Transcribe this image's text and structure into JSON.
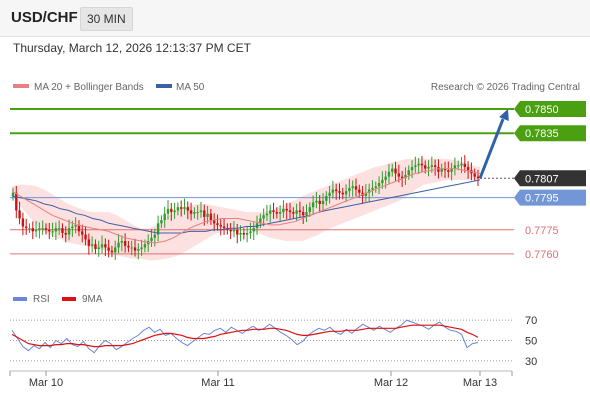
{
  "header": {
    "pair": "USD/CHF",
    "timeframe": "30 MIN",
    "timestamp": "Thursday, March 12, 2026 12:13:37 PM CET"
  },
  "legend": {
    "ma20": "MA 20 + Bollinger Bands",
    "ma50": "MA 50",
    "copyright": "Research © 2026 Trading Central",
    "rsi": "RSI",
    "ma9": "9MA"
  },
  "colors": {
    "up_candle": "#2e9e2e",
    "down_candle": "#cc1111",
    "ma20": "#e88080",
    "ma50": "#3d5fa5",
    "bollinger_fill": "#fde0e0",
    "resistance": "#4aa010",
    "support_blue": "#7296d6",
    "support_red": "#e07070",
    "current_price": "#333333",
    "arrow": "#3062a8",
    "rsi": "#6a86d8",
    "ma9": "#dd1111"
  },
  "price_levels": [
    {
      "value": "0.7850",
      "kind": "resistance"
    },
    {
      "value": "0.7835",
      "kind": "resistance"
    },
    {
      "value": "0.7807",
      "kind": "current"
    },
    {
      "value": "0.7795",
      "kind": "pivot"
    },
    {
      "value": "0.7775",
      "kind": "support"
    },
    {
      "value": "0.7760",
      "kind": "support"
    }
  ],
  "chart_data": [
    {
      "type": "candlestick",
      "title": "USD/CHF",
      "x_ticks": [
        "Mar 10",
        "Mar 11",
        "Mar 12",
        "Mar 13"
      ],
      "ylim": [
        0.775,
        0.7855
      ],
      "forecast_arrow": {
        "from": 0.7807,
        "to": 0.785
      },
      "series": [
        {
          "name": "MA 20 + Bollinger Bands",
          "values": [
            0.7799,
            0.7796,
            0.7793,
            0.779,
            0.7787,
            0.7784,
            0.7782,
            0.778,
            0.7778,
            0.7777,
            0.7776,
            0.7775,
            0.7774,
            0.7772,
            0.777,
            0.7769,
            0.7768,
            0.7767,
            0.7767,
            0.7768,
            0.777,
            0.7773,
            0.7776,
            0.7778,
            0.778,
            0.7781,
            0.7782,
            0.7782,
            0.7782,
            0.7781,
            0.778,
            0.7779,
            0.7778,
            0.7778,
            0.7779,
            0.778,
            0.7782,
            0.7784,
            0.7786,
            0.7788,
            0.779,
            0.7792,
            0.7794,
            0.7796,
            0.7798,
            0.78,
            0.7802,
            0.7804,
            0.7806,
            0.7808,
            0.781,
            0.7811,
            0.7812,
            0.7813,
            0.7813,
            0.7813,
            0.7812,
            0.7811,
            0.781
          ]
        },
        {
          "name": "MA 50",
          "values": [
            0.7796,
            0.7795,
            0.7794,
            0.7793,
            0.7791,
            0.779,
            0.7788,
            0.7787,
            0.7785,
            0.7784,
            0.7782,
            0.7781,
            0.7779,
            0.7778,
            0.7777,
            0.7776,
            0.7775,
            0.7774,
            0.7773,
            0.7773,
            0.7773,
            0.7773,
            0.7774,
            0.7774,
            0.7774,
            0.7775,
            0.7775,
            0.7776,
            0.7776,
            0.7777,
            0.7777,
            0.7778,
            0.7779,
            0.778,
            0.7781,
            0.7782,
            0.7783,
            0.7784,
            0.7786,
            0.7787,
            0.7788,
            0.7789,
            0.779,
            0.7791,
            0.7792,
            0.7793,
            0.7794,
            0.7795,
            0.7796,
            0.7797,
            0.7798,
            0.7799,
            0.78,
            0.7801,
            0.7802,
            0.7803,
            0.7804,
            0.7805,
            0.7806
          ]
        }
      ],
      "bollinger_upper": [
        0.7802,
        0.7803,
        0.7803,
        0.7802,
        0.78,
        0.7797,
        0.7794,
        0.7791,
        0.7789,
        0.7787,
        0.7786,
        0.7786,
        0.7786,
        0.7784,
        0.7781,
        0.7778,
        0.7776,
        0.7776,
        0.7778,
        0.7782,
        0.7786,
        0.7789,
        0.779,
        0.7791,
        0.7791,
        0.779,
        0.7789,
        0.7788,
        0.7787,
        0.7786,
        0.7786,
        0.7786,
        0.7787,
        0.7789,
        0.7791,
        0.7793,
        0.7796,
        0.7798,
        0.78,
        0.7802,
        0.7804,
        0.7806,
        0.7808,
        0.781,
        0.7812,
        0.7814,
        0.7815,
        0.7817,
        0.7818,
        0.7819,
        0.7819,
        0.7819,
        0.7819,
        0.7819,
        0.7819,
        0.7818,
        0.7817,
        0.7815,
        0.7814
      ],
      "bollinger_lower": [
        0.7796,
        0.779,
        0.7784,
        0.7778,
        0.7774,
        0.7771,
        0.7769,
        0.7767,
        0.7766,
        0.7765,
        0.7764,
        0.7763,
        0.7761,
        0.7759,
        0.7758,
        0.7757,
        0.7757,
        0.7756,
        0.7756,
        0.7757,
        0.7758,
        0.776,
        0.7763,
        0.7766,
        0.7769,
        0.7772,
        0.7774,
        0.7775,
        0.7776,
        0.7776,
        0.7774,
        0.7772,
        0.777,
        0.7769,
        0.7768,
        0.7768,
        0.7768,
        0.777,
        0.7772,
        0.7775,
        0.7777,
        0.7779,
        0.7781,
        0.7783,
        0.7785,
        0.7787,
        0.7789,
        0.7791,
        0.7793,
        0.7796,
        0.78,
        0.7803,
        0.7804,
        0.7805,
        0.7806,
        0.7806,
        0.7806,
        0.7806,
        0.7806
      ],
      "candles_close": [
        0.7798,
        0.7787,
        0.7782,
        0.7777,
        0.7776,
        0.7776,
        0.7774,
        0.7775,
        0.7776,
        0.7776,
        0.7775,
        0.7774,
        0.7774,
        0.7776,
        0.7776,
        0.7773,
        0.7772,
        0.7776,
        0.7777,
        0.7778,
        0.7774,
        0.7772,
        0.7769,
        0.7765,
        0.7766,
        0.7763,
        0.7764,
        0.7766,
        0.7764,
        0.7762,
        0.7761,
        0.7764,
        0.7767,
        0.7768,
        0.7765,
        0.7764,
        0.7764,
        0.7762,
        0.7763,
        0.7764,
        0.7766,
        0.7768,
        0.777,
        0.7772,
        0.7779,
        0.7781,
        0.7785,
        0.7788,
        0.7786,
        0.7787,
        0.7789,
        0.7788,
        0.7789,
        0.7787,
        0.7785,
        0.7786,
        0.7786,
        0.7787,
        0.7783,
        0.7785,
        0.7781,
        0.7779,
        0.7778,
        0.7777,
        0.7776,
        0.7775,
        0.7774,
        0.7775,
        0.7772,
        0.7773,
        0.7772,
        0.7773,
        0.7774,
        0.7776,
        0.7779,
        0.7782,
        0.7784,
        0.7785,
        0.7787,
        0.7786,
        0.7785,
        0.7786,
        0.7788,
        0.7787,
        0.7786,
        0.7785,
        0.7787,
        0.7786,
        0.7784,
        0.7786,
        0.7789,
        0.7792,
        0.7793,
        0.7791,
        0.7793,
        0.7796,
        0.7798,
        0.78,
        0.7799,
        0.7798,
        0.7797,
        0.7799,
        0.7801,
        0.7802,
        0.78,
        0.7798,
        0.7796,
        0.7798,
        0.78,
        0.7801,
        0.7802,
        0.7804,
        0.7806,
        0.7808,
        0.7811,
        0.7813,
        0.781,
        0.7808,
        0.7807,
        0.7809,
        0.7812,
        0.7814,
        0.7815,
        0.7816,
        0.7815,
        0.7813,
        0.7814,
        0.7815,
        0.7814,
        0.7811,
        0.7813,
        0.7812,
        0.7811,
        0.7813,
        0.7815,
        0.7815,
        0.7816,
        0.7814,
        0.7812,
        0.781,
        0.7808,
        0.7807
      ]
    },
    {
      "type": "line",
      "title": "RSI",
      "y_ticks": [
        70,
        50,
        30
      ],
      "ylim": [
        25,
        75
      ],
      "series": [
        {
          "name": "RSI",
          "values": [
            60,
            52,
            44,
            40,
            45,
            42,
            48,
            43,
            50,
            47,
            52,
            46,
            44,
            49,
            42,
            38,
            45,
            50,
            47,
            41,
            44,
            48,
            52,
            55,
            60,
            63,
            58,
            61,
            55,
            57,
            52,
            48,
            45,
            49,
            53,
            57,
            56,
            60,
            62,
            58,
            63,
            60,
            57,
            61,
            64,
            60,
            62,
            66,
            62,
            58,
            55,
            51,
            46,
            49,
            55,
            59,
            62,
            60,
            63,
            58,
            56,
            61,
            57,
            62,
            66,
            63,
            60,
            64,
            61,
            58,
            62,
            65,
            70,
            68,
            66,
            64,
            61,
            65,
            68,
            63,
            60,
            59,
            56,
            43,
            47,
            48
          ]
        },
        {
          "name": "9MA",
          "values": [
            56,
            53,
            50,
            47,
            46,
            45,
            45,
            45,
            46,
            46,
            47,
            47,
            46,
            46,
            45,
            44,
            44,
            45,
            45,
            45,
            45,
            46,
            47,
            49,
            51,
            53,
            55,
            56,
            57,
            57,
            56,
            55,
            53,
            52,
            52,
            52,
            53,
            54,
            56,
            57,
            58,
            59,
            60,
            60,
            61,
            61,
            61,
            62,
            62,
            61,
            60,
            58,
            56,
            55,
            55,
            56,
            57,
            58,
            59,
            59,
            59,
            60,
            60,
            60,
            61,
            62,
            62,
            62,
            62,
            62,
            62,
            63,
            64,
            65,
            65,
            65,
            65,
            65,
            65,
            64,
            63,
            62,
            61,
            58,
            56,
            53
          ]
        }
      ]
    }
  ]
}
